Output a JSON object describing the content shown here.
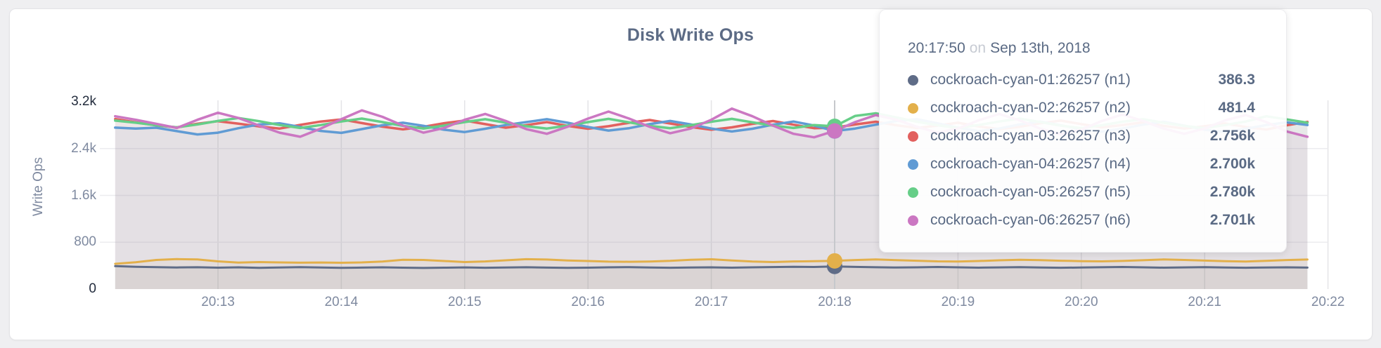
{
  "page": {
    "background": "#efeff1",
    "card_background": "#ffffff"
  },
  "chart": {
    "title": "Disk Write Ops",
    "y_axis_label": "Write Ops"
  },
  "tooltip": {
    "time": "20:17:50",
    "preposition": "on",
    "date": "Sep 13th, 2018",
    "rows": [
      {
        "label": "cockroach-cyan-01:26257 (n1)",
        "value": "386.3"
      },
      {
        "label": "cockroach-cyan-02:26257 (n2)",
        "value": "481.4"
      },
      {
        "label": "cockroach-cyan-03:26257 (n3)",
        "value": "2.756k"
      },
      {
        "label": "cockroach-cyan-04:26257 (n4)",
        "value": "2.700k"
      },
      {
        "label": "cockroach-cyan-05:26257 (n5)",
        "value": "2.780k"
      },
      {
        "label": "cockroach-cyan-06:26257 (n6)",
        "value": "2.701k"
      }
    ]
  },
  "chart_data": {
    "type": "line",
    "title": "Disk Write Ops",
    "xlabel": "",
    "ylabel": "Write Ops",
    "ylim": [
      0,
      3200
    ],
    "grid": true,
    "legend_position": "hover-tooltip",
    "x_start": "20:12:10",
    "x_interval_seconds": 10,
    "x_ticks": [
      "20:13",
      "20:14",
      "20:15",
      "20:16",
      "20:17",
      "20:18",
      "20:19",
      "20:20",
      "20:21",
      "20:22"
    ],
    "y_ticks": [
      {
        "label": "0",
        "value": 0,
        "emphasis": true,
        "grid": false
      },
      {
        "label": "800",
        "value": 800,
        "emphasis": false,
        "grid": true
      },
      {
        "label": "1.6k",
        "value": 1600,
        "emphasis": false,
        "grid": true
      },
      {
        "label": "2.4k",
        "value": 2400,
        "emphasis": false,
        "grid": true
      },
      {
        "label": "3.2k",
        "value": 3200,
        "emphasis": true,
        "grid": false
      }
    ],
    "hover": {
      "index": 35,
      "time": "20:17:50",
      "date": "Sep 13th, 2018"
    },
    "series": [
      {
        "name": "cockroach-cyan-01:26257 (n1)",
        "color": "#5f6c87",
        "hover_value": 386.3,
        "line_width": 3,
        "values": [
          392,
          381,
          375,
          369,
          373,
          366,
          371,
          363,
          368,
          374,
          369,
          362,
          367,
          372,
          366,
          361,
          365,
          370,
          364,
          368,
          373,
          367,
          362,
          366,
          371,
          375,
          369,
          364,
          368,
          372,
          366,
          371,
          376,
          381,
          377,
          386.3,
          379,
          373,
          368,
          372,
          377,
          371,
          366,
          370,
          374,
          369,
          364,
          368,
          373,
          377,
          371,
          366,
          370,
          375,
          369,
          364,
          368,
          372,
          367
        ]
      },
      {
        "name": "cockroach-cyan-02:26257 (n2)",
        "color": "#e3b04b",
        "hover_value": 481.4,
        "line_width": 3,
        "values": [
          432,
          458,
          497,
          512,
          506,
          474,
          452,
          461,
          456,
          451,
          454,
          449,
          456,
          471,
          501,
          497,
          479,
          462,
          472,
          491,
          511,
          504,
          489,
          479,
          469,
          466,
          471,
          482,
          501,
          509,
          489,
          471,
          462,
          472,
          476,
          481.4,
          496,
          506,
          494,
          484,
          474,
          471,
          479,
          491,
          501,
          494,
          484,
          477,
          473,
          481,
          493,
          506,
          497,
          487,
          477,
          471,
          482,
          496,
          504
        ]
      },
      {
        "name": "cockroach-cyan-03:26257 (n3)",
        "color": "#e2605e",
        "hover_value": 2756,
        "line_width": 3.5,
        "values": [
          2905,
          2848,
          2796,
          2762,
          2824,
          2868,
          2826,
          2778,
          2742,
          2804,
          2862,
          2898,
          2836,
          2775,
          2728,
          2772,
          2833,
          2879,
          2818,
          2757,
          2801,
          2852,
          2788,
          2738,
          2782,
          2841,
          2888,
          2828,
          2768,
          2722,
          2762,
          2822,
          2871,
          2808,
          2748,
          2756,
          2812,
          2858,
          2798,
          2752,
          2792,
          2842,
          2778,
          2732,
          2772,
          2832,
          2878,
          2818,
          2762,
          2802,
          2848,
          2788,
          2742,
          2782,
          2828,
          2768,
          2724,
          2798,
          2856
        ]
      },
      {
        "name": "cockroach-cyan-04:26257 (n4)",
        "color": "#609bd4",
        "hover_value": 2700,
        "line_width": 3.5,
        "values": [
          2758,
          2742,
          2756,
          2698,
          2641,
          2672,
          2748,
          2812,
          2832,
          2768,
          2702,
          2668,
          2732,
          2798,
          2842,
          2788,
          2722,
          2682,
          2738,
          2802,
          2852,
          2902,
          2842,
          2768,
          2708,
          2748,
          2818,
          2872,
          2812,
          2742,
          2692,
          2738,
          2808,
          2862,
          2792,
          2700,
          2742,
          2808,
          2872,
          2902,
          2832,
          2758,
          2698,
          2742,
          2812,
          2862,
          2798,
          2728,
          2688,
          2742,
          2808,
          2858,
          2792,
          2722,
          2682,
          2738,
          2802,
          2848,
          2802
        ]
      },
      {
        "name": "cockroach-cyan-05:26257 (n5)",
        "color": "#66ce88",
        "hover_value": 2780,
        "line_width": 3.5,
        "values": [
          2878,
          2842,
          2798,
          2762,
          2812,
          2872,
          2922,
          2868,
          2802,
          2752,
          2802,
          2862,
          2912,
          2852,
          2788,
          2742,
          2792,
          2852,
          2902,
          2842,
          2782,
          2742,
          2792,
          2852,
          2908,
          2848,
          2788,
          2748,
          2798,
          2858,
          2908,
          2848,
          2792,
          2752,
          2802,
          2780,
          2958,
          3002,
          2932,
          2858,
          2798,
          2752,
          2802,
          2862,
          2912,
          2852,
          2792,
          2748,
          2798,
          2858,
          2902,
          2842,
          2788,
          2748,
          2802,
          2862,
          2952,
          2898,
          2842
        ]
      },
      {
        "name": "cockroach-cyan-06:26257 (n6)",
        "color": "#cb77c2",
        "hover_value": 2701,
        "line_width": 3.5,
        "values": [
          2952,
          2892,
          2822,
          2752,
          2892,
          3012,
          2922,
          2792,
          2672,
          2602,
          2742,
          2902,
          3052,
          2942,
          2792,
          2672,
          2752,
          2892,
          2992,
          2872,
          2732,
          2652,
          2772,
          2912,
          3032,
          2912,
          2772,
          2662,
          2742,
          2892,
          3082,
          2952,
          2792,
          2652,
          2592,
          2701,
          2852,
          2972,
          2892,
          2772,
          2672,
          2742,
          2882,
          2992,
          2882,
          2742,
          2642,
          2722,
          2872,
          2982,
          2872,
          2742,
          2652,
          2742,
          2882,
          2972,
          2852,
          2692,
          2602
        ]
      }
    ]
  }
}
